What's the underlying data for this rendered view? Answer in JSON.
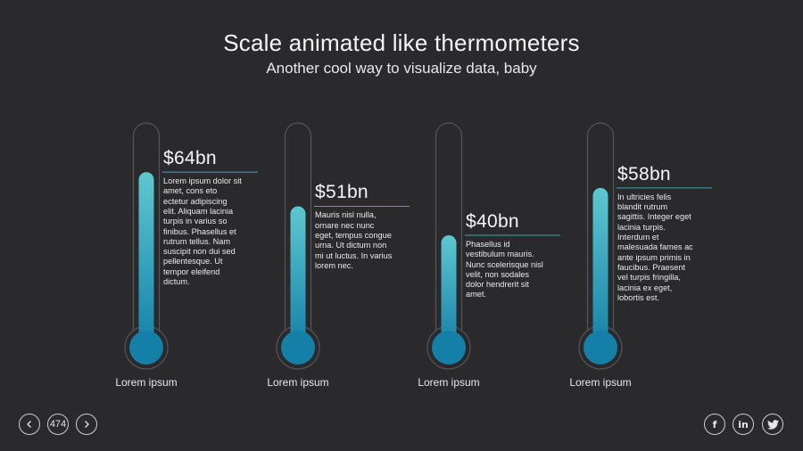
{
  "header": {
    "title": "Scale animated like thermometers",
    "subtitle": "Another cool way to visualize data, baby"
  },
  "chart_data": {
    "type": "bar",
    "categories": [
      "Lorem ipsum",
      "Lorem ipsum",
      "Lorem ipsum",
      "Lorem ipsum"
    ],
    "values": [
      64,
      51,
      40,
      58
    ],
    "value_labels": [
      "$64bn",
      "$51bn",
      "$40bn",
      "$58bn"
    ],
    "unit": "$bn",
    "ylim": [
      0,
      82
    ],
    "descriptions": [
      "Lorem ipsum dolor sit amet, cons eto ectetur adipiscing elit. Aliquam lacinia turpis in varius so finibus. Phasellus et rutrum tellus. Nam suscipit non dui sed pellentesque. Ut tempor eleifend dictum.",
      "Mauris nisl nulla, ornare nec nunc eget, tempus congue urna. Ut dictum non mi ut luctus. In varius lorem nec.",
      "Phasellus id vestibulum mauris. Nunc scelerisque nisl velit, non sodales dolor hendrerit sit amet.",
      "In ultricies felis blandit rutrum sagittis. Integer eget lacinia turpis. Interdum et malesuada fames ac ante ipsum primis in faucibus. Praesent vel turpis fringilla, lacinia ex eget, lobortis est."
    ],
    "grid": false,
    "legend": "none"
  },
  "navigation": {
    "page_number": "474",
    "prev_icon": "chevron-left-icon",
    "next_icon": "chevron-right-icon"
  },
  "social": {
    "facebook": "f",
    "linkedin": "in",
    "twitter": "twitter-icon"
  },
  "colors": {
    "background": "#2a2a2c",
    "tube_outline": "#555558",
    "fill_top": "#5ec8d0",
    "fill_bottom": "#1480a8",
    "accent_line": "#3aa7b3"
  }
}
